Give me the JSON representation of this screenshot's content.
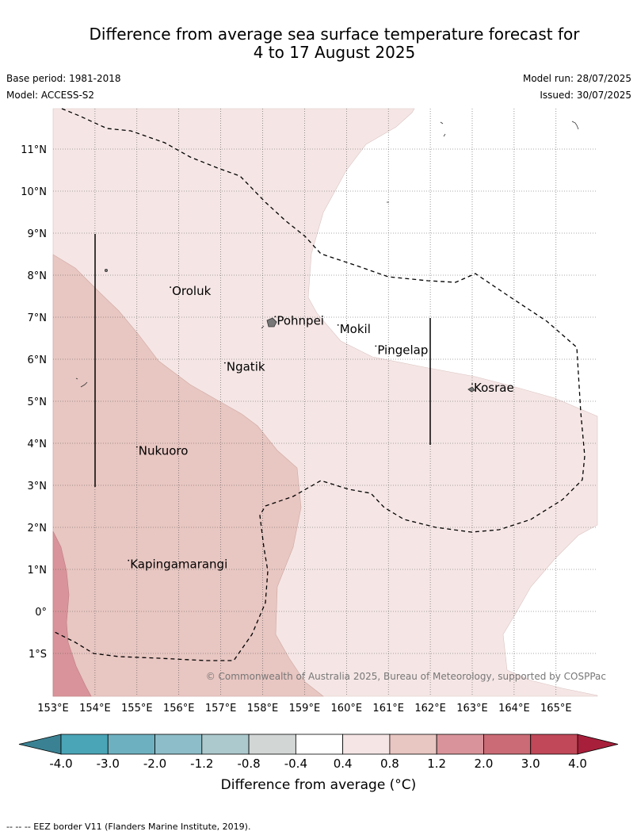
{
  "header": {
    "title_line1": "Difference from average sea surface temperature forecast for",
    "title_line2": "4 to 17 August 2025",
    "base_period": "Base period: 1981-2018",
    "model": "Model: ACCESS-S2",
    "model_run": "Model run: 28/07/2025",
    "issued": "Issued: 30/07/2025"
  },
  "map": {
    "lon_labels": [
      "153°E",
      "154°E",
      "155°E",
      "156°E",
      "157°E",
      "158°E",
      "159°E",
      "160°E",
      "161°E",
      "162°E",
      "163°E",
      "164°E",
      "165°E"
    ],
    "lat_labels": [
      "11°N",
      "10°N",
      "9°N",
      "8°N",
      "7°N",
      "6°N",
      "5°N",
      "4°N",
      "3°N",
      "2°N",
      "1°N",
      "0°",
      "1°S"
    ],
    "places": [
      {
        "name": "Oroluk",
        "lon": 155.8,
        "lat": 7.6
      },
      {
        "name": "Pohnpei",
        "lon": 158.3,
        "lat": 6.9
      },
      {
        "name": "Mokil",
        "lon": 159.8,
        "lat": 6.7
      },
      {
        "name": "Pingelap",
        "lon": 160.7,
        "lat": 6.2
      },
      {
        "name": "Ngatik",
        "lon": 157.1,
        "lat": 5.8
      },
      {
        "name": "Kosrae",
        "lon": 163.0,
        "lat": 5.3
      },
      {
        "name": "Nukuoro",
        "lon": 155.0,
        "lat": 3.8
      },
      {
        "name": "Kapingamarangi",
        "lon": 154.8,
        "lat": 1.1
      }
    ],
    "copyright": "© Commonwealth of Australia 2025, Bureau of Meteorology, supported by COSPPac"
  },
  "colorbar": {
    "ticks": [
      "-4.0",
      "-3.0",
      "-2.0",
      "-1.2",
      "-0.8",
      "-0.4",
      "0.4",
      "0.8",
      "1.2",
      "2.0",
      "3.0",
      "4.0"
    ],
    "colors": [
      "#4aa5b6",
      "#6db1c0",
      "#8dbdc8",
      "#acc9cd",
      "#d2d6d5",
      "#ffffff",
      "#f5e6e5",
      "#e8c6c1",
      "#d8949a",
      "#cb6b76",
      "#c04858"
    ],
    "under_color": "#3a8293",
    "over_color": "#a81f3b",
    "label": "Difference from average (°C)"
  },
  "footer": "--  --  -- EEZ border V11 (Flanders Marine Institute, 2019)."
}
